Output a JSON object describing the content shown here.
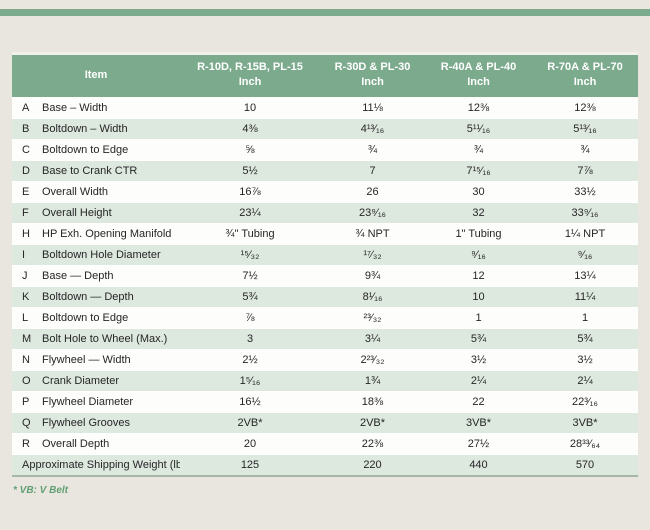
{
  "page": {
    "accent_green": "#7caa8d",
    "row_tint_green": "#dde8df",
    "background": "#e9e6e0",
    "footnote": "* VB: V Belt"
  },
  "table": {
    "header": {
      "item_label": "Item",
      "columns": [
        {
          "model": "R-10D, R-15B, PL-15",
          "unit": "Inch"
        },
        {
          "model": "R-30D & PL-30",
          "unit": "Inch"
        },
        {
          "model": "R-40A & PL-40",
          "unit": "Inch"
        },
        {
          "model": "R-70A & PL-70",
          "unit": "Inch"
        }
      ]
    },
    "rows": [
      {
        "letter": "A",
        "item": "Base – Width",
        "values": [
          "10",
          "11⅛",
          "12⅜",
          "12⅜"
        ]
      },
      {
        "letter": "B",
        "item": "Boltdown – Width",
        "values": [
          "4⅜",
          "4¹³⁄₁₆",
          "5¹¹⁄₁₆",
          "5¹³⁄₁₆"
        ]
      },
      {
        "letter": "C",
        "item": "Boltdown to Edge",
        "values": [
          "⅝",
          "¾",
          "¾",
          "¾"
        ]
      },
      {
        "letter": "D",
        "item": "Base to Crank CTR",
        "values": [
          "5½",
          "7",
          "7¹⁵⁄₁₆",
          "7⅞"
        ]
      },
      {
        "letter": "E",
        "item": "Overall Width",
        "values": [
          "16⅞",
          "26",
          "30",
          "33½"
        ]
      },
      {
        "letter": "F",
        "item": "Overall Height",
        "values": [
          "23¼",
          "23⁹⁄₁₆",
          "32",
          "33⁹⁄₁₆"
        ]
      },
      {
        "letter": "H",
        "item": "HP Exh. Opening Manifold",
        "values": [
          "¾\" Tubing",
          "¾ NPT",
          "1\" Tubing",
          "1¼ NPT"
        ]
      },
      {
        "letter": "I",
        "item": "Boltdown Hole Diameter",
        "values": [
          "¹⁵⁄₃₂",
          "¹⁷⁄₃₂",
          "⁹⁄₁₆",
          "⁹⁄₁₆"
        ]
      },
      {
        "letter": "J",
        "item": "Base — Depth",
        "values": [
          "7½",
          "9¾",
          "12",
          "13¼"
        ]
      },
      {
        "letter": "K",
        "item": "Boltdown — Depth",
        "values": [
          "5¾",
          "8¹⁄₁₆",
          "10",
          "11¼"
        ]
      },
      {
        "letter": "L",
        "item": "Boltdown to Edge",
        "values": [
          "⅞",
          "²³⁄₃₂",
          "1",
          "1"
        ]
      },
      {
        "letter": "M",
        "item": "Bolt Hole to Wheel (Max.)",
        "values": [
          "3",
          "3¼",
          "5¾",
          "5¾"
        ]
      },
      {
        "letter": "N",
        "item": "Flywheel — Width",
        "values": [
          "2½",
          "2²³⁄₃₂",
          "3½",
          "3½"
        ]
      },
      {
        "letter": "O",
        "item": "Crank Diameter",
        "values": [
          "1⁵⁄₁₆",
          "1¾",
          "2¼",
          "2¼"
        ]
      },
      {
        "letter": "P",
        "item": "Flywheel Diameter",
        "values": [
          "16½",
          "18⅜",
          "22",
          "22³⁄₁₆"
        ]
      },
      {
        "letter": "Q",
        "item": "Flywheel Grooves",
        "values": [
          "2VB*",
          "2VB*",
          "3VB*",
          "3VB*"
        ]
      },
      {
        "letter": "R",
        "item": "Overall Depth",
        "values": [
          "20",
          "22⅜",
          "27½",
          "28³³⁄₆₄"
        ]
      }
    ],
    "footer_row": {
      "label": "Approximate Shipping Weight (lbs.)",
      "values": [
        "125",
        "220",
        "440",
        "570"
      ]
    }
  }
}
